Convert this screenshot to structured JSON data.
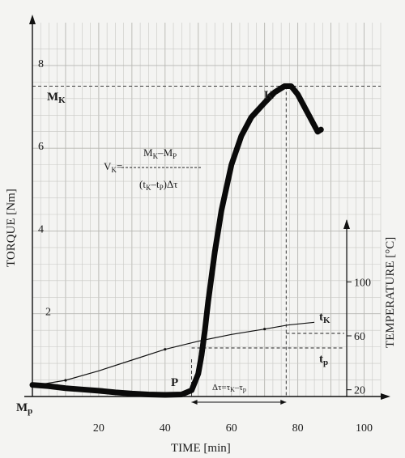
{
  "chart_data": {
    "type": "line",
    "xlabel": "TIME [min]",
    "ylabel": "TORQUE [Nm]",
    "y2label": "TEMPERATURE [°C]",
    "xlim": [
      0,
      105
    ],
    "ylim": [
      0,
      8.8
    ],
    "y2lim": [
      15,
      135
    ],
    "x_ticks": [
      20,
      40,
      60,
      80,
      100
    ],
    "y_ticks": [
      2,
      4,
      6,
      8
    ],
    "y2_ticks": [
      20,
      60,
      100
    ],
    "grid": true,
    "series": [
      {
        "axis": "left",
        "x": [
          0,
          5,
          10,
          15,
          20,
          25,
          30,
          35,
          40,
          45,
          48,
          50,
          51,
          52,
          53,
          55,
          57,
          60,
          63,
          66,
          70,
          73,
          76,
          78,
          80,
          82,
          84,
          86,
          87
        ],
        "y": [
          0.28,
          0.25,
          0.2,
          0.17,
          0.14,
          0.1,
          0.07,
          0.05,
          0.04,
          0.05,
          0.15,
          0.55,
          1.0,
          1.6,
          2.3,
          3.5,
          4.5,
          5.6,
          6.3,
          6.75,
          7.1,
          7.35,
          7.5,
          7.5,
          7.3,
          7.0,
          6.7,
          6.4,
          6.45
        ]
      },
      {
        "axis": "right",
        "x": [
          0,
          10,
          20,
          30,
          40,
          50,
          60,
          70,
          77,
          85
        ],
        "y": [
          23,
          27,
          34,
          42,
          50,
          56,
          61,
          65,
          68,
          70
        ]
      }
    ],
    "annotations": {
      "MK": "M",
      "MK_sub": "K",
      "Mp": "M",
      "Mp_sub": "p",
      "K": "K",
      "P": "P",
      "tK": "t",
      "tK_sub": "K",
      "tp": "t",
      "tp_sub": "p",
      "formula_left": "V",
      "formula_left_sub": "K",
      "formula_eq": "=",
      "formula_num": "M",
      "formula_num_sub1": "K",
      "formula_num_minus": "–M",
      "formula_num_sub2": "P",
      "formula_den": "(t",
      "formula_den_sub1": "K",
      "formula_den_minus": "–t",
      "formula_den_sub2": "P",
      "formula_den_end": ")Δτ",
      "dtau": "Δτ=τ",
      "dtau_sub1": "K",
      "dtau_mid": "–τ",
      "dtau_sub2": "p"
    }
  }
}
